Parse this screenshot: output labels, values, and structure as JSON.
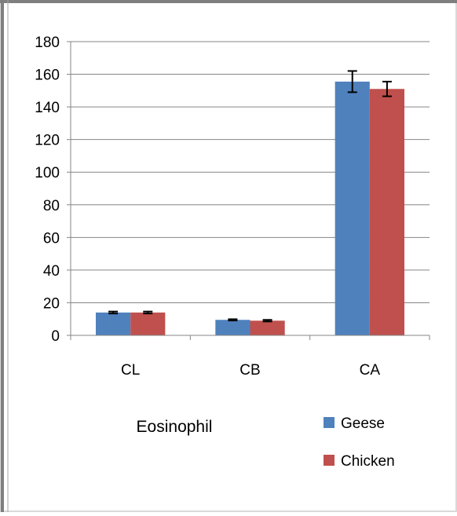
{
  "chart_data": {
    "type": "bar",
    "title": "",
    "xlabel": "Eosinophil",
    "ylabel": "",
    "categories": [
      "CL",
      "CB",
      "CA"
    ],
    "ylim": [
      0,
      180
    ],
    "yticks": [
      0,
      20,
      40,
      60,
      80,
      100,
      120,
      140,
      160,
      180
    ],
    "grid": "horizontal major gridlines",
    "legend_position": "bottom-right",
    "series": [
      {
        "name": "Geese",
        "color": "#4f81bd",
        "values": [
          14,
          9.5,
          155.5
        ],
        "errors": [
          0.6,
          0.4,
          6.5
        ]
      },
      {
        "name": "Chicken",
        "color": "#c0504d",
        "values": [
          14,
          9,
          151
        ],
        "errors": [
          0.6,
          0.5,
          4.5
        ]
      }
    ]
  }
}
